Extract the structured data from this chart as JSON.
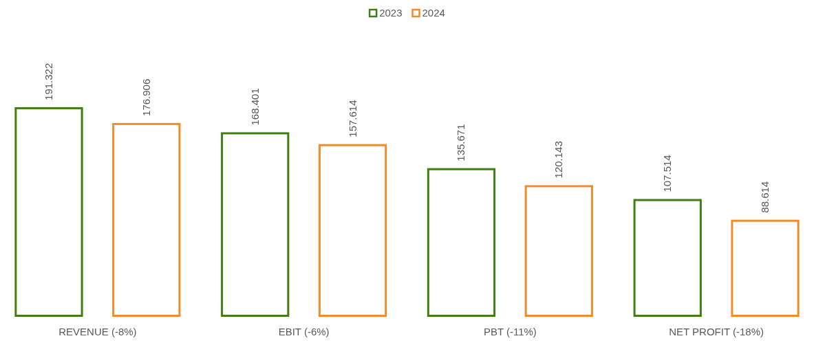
{
  "chart_data": {
    "type": "bar",
    "categories": [
      "REVENUE (-8%)",
      "EBIT (-6%)",
      "PBT (-11%)",
      "NET PROFIT (-18%)"
    ],
    "series": [
      {
        "name": "2023",
        "color": "#3f7f12",
        "values": [
          191.322,
          168.401,
          135.671,
          107.514
        ]
      },
      {
        "name": "2024",
        "color": "#f28c28",
        "values": [
          176.906,
          157.614,
          120.143,
          88.614
        ]
      }
    ],
    "data_labels": true,
    "legend": "top",
    "grid": false
  }
}
